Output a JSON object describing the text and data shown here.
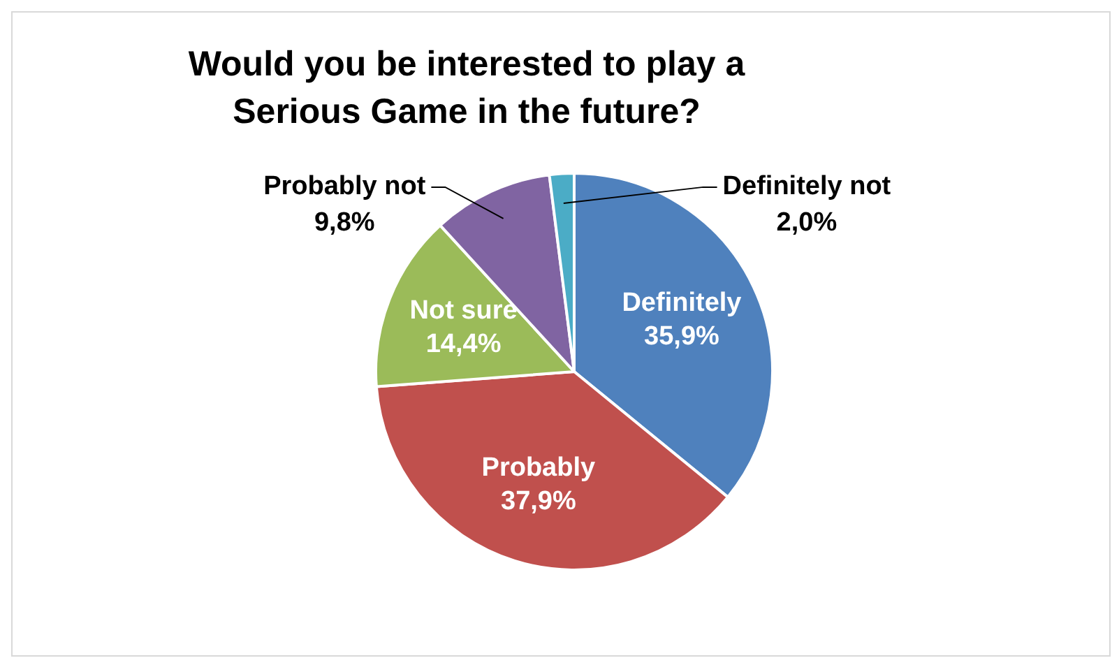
{
  "chart_data": {
    "type": "pie",
    "title": "Would you be interested to play a Serious Game in the future?",
    "categories": [
      "Definitely",
      "Probably",
      "Not sure",
      "Probably not",
      "Definitely not"
    ],
    "values": [
      35.9,
      37.9,
      14.4,
      9.8,
      2.0
    ],
    "value_labels": [
      "35,9%",
      "37,9%",
      "14,4%",
      "9,8%",
      "2,0%"
    ],
    "colors": [
      "#4f81bd",
      "#c0504d",
      "#9bbb59",
      "#8064a2",
      "#4bacc6"
    ],
    "legend": false
  }
}
